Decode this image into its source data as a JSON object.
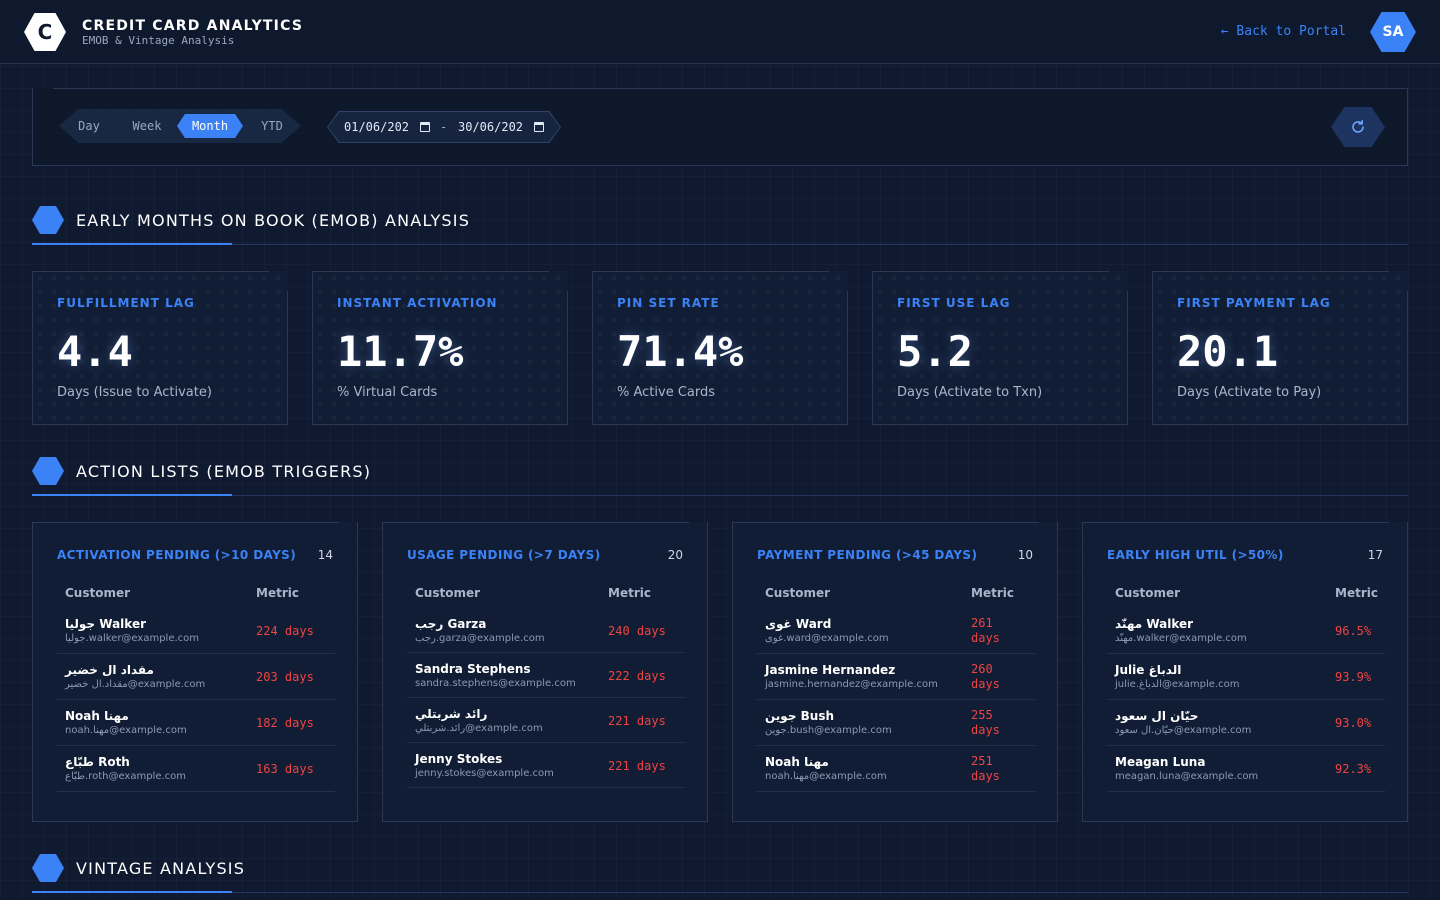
{
  "header": {
    "logo_letter": "C",
    "title": "CREDIT CARD ANALYTICS",
    "subtitle": "EMOB & Vintage Analysis",
    "back_link": "← Back to Portal",
    "avatar": "SA"
  },
  "filters": {
    "range_tabs": [
      "Day",
      "Week",
      "Month",
      "YTD"
    ],
    "active_tab": "Month",
    "date_from": "01/06/202",
    "date_to": "30/06/202",
    "date_separator": "-",
    "refresh_icon": "refresh-icon"
  },
  "sections": {
    "emob": "EARLY MONTHS ON BOOK (EMOB) ANALYSIS",
    "actions": "ACTION LISTS (EMOB TRIGGERS)",
    "vintage": "VINTAGE ANALYSIS"
  },
  "kpis": [
    {
      "label": "FULFILLMENT LAG",
      "value": "4.4",
      "sub": "Days (Issue to Activate)"
    },
    {
      "label": "INSTANT ACTIVATION",
      "value": "11.7%",
      "sub": "% Virtual Cards"
    },
    {
      "label": "PIN SET RATE",
      "value": "71.4%",
      "sub": "% Active Cards"
    },
    {
      "label": "FIRST USE LAG",
      "value": "5.2",
      "sub": "Days (Activate to Txn)"
    },
    {
      "label": "FIRST PAYMENT LAG",
      "value": "20.1",
      "sub": "Days (Activate to Pay)"
    }
  ],
  "lists": [
    {
      "title": "ACTIVATION PENDING (>10 DAYS)",
      "count": "14",
      "col_customer": "Customer",
      "col_metric": "Metric",
      "rows": [
        {
          "name": "جوليا Walker",
          "email": "جوليا.walker@example.com",
          "metric": "224 days"
        },
        {
          "name": "مقداد ال خضير",
          "email": "مقداد.ال خضير@example.com",
          "metric": "203 days"
        },
        {
          "name": "Noah مهنا",
          "email": "noah.مهنا@example.com",
          "metric": "182 days"
        },
        {
          "name": "طبّاع Roth",
          "email": "طبّاع.roth@example.com",
          "metric": "163 days"
        }
      ]
    },
    {
      "title": "USAGE PENDING (>7 DAYS)",
      "count": "20",
      "col_customer": "Customer",
      "col_metric": "Metric",
      "rows": [
        {
          "name": "رجب Garza",
          "email": "رجب.garza@example.com",
          "metric": "240 days"
        },
        {
          "name": "Sandra Stephens",
          "email": "sandra.stephens@example.com",
          "metric": "222 days"
        },
        {
          "name": "رائد شربتلي",
          "email": "رائد.شربتلي@example.com",
          "metric": "221 days"
        },
        {
          "name": "Jenny Stokes",
          "email": "jenny.stokes@example.com",
          "metric": "221 days"
        }
      ]
    },
    {
      "title": "PAYMENT PENDING (>45 DAYS)",
      "count": "10",
      "col_customer": "Customer",
      "col_metric": "Metric",
      "rows": [
        {
          "name": "غوى Ward",
          "email": "غوى.ward@example.com",
          "metric_line1": "261",
          "metric_line2": "days"
        },
        {
          "name": "Jasmine Hernandez",
          "email": "jasmine.hernandez@example.com",
          "metric_line1": "260",
          "metric_line2": "days"
        },
        {
          "name": "جوين Bush",
          "email": "جوين.bush@example.com",
          "metric_line1": "255",
          "metric_line2": "days"
        },
        {
          "name": "Noah مهنا",
          "email": "noah.مهنا@example.com",
          "metric_line1": "251",
          "metric_line2": "days"
        }
      ]
    },
    {
      "title": "EARLY HIGH UTIL (>50%)",
      "count": "17",
      "col_customer": "Customer",
      "col_metric": "Metric",
      "rows": [
        {
          "name": "مهنّد Walker",
          "email": "مهنّد.walker@example.com",
          "metric": "96.5%"
        },
        {
          "name": "Julie الدباغ",
          "email": "julie.الدباغ@example.com",
          "metric": "93.9%"
        },
        {
          "name": "حيّان ال سعود",
          "email": "حيّان.ال سعود@example.com",
          "metric": "93.0%"
        },
        {
          "name": "Meagan Luna",
          "email": "meagan.luna@example.com",
          "metric": "92.3%"
        }
      ]
    }
  ],
  "colors": {
    "accent": "#3b82f6",
    "alert": "#ef4444",
    "background": "#0f1a30"
  }
}
